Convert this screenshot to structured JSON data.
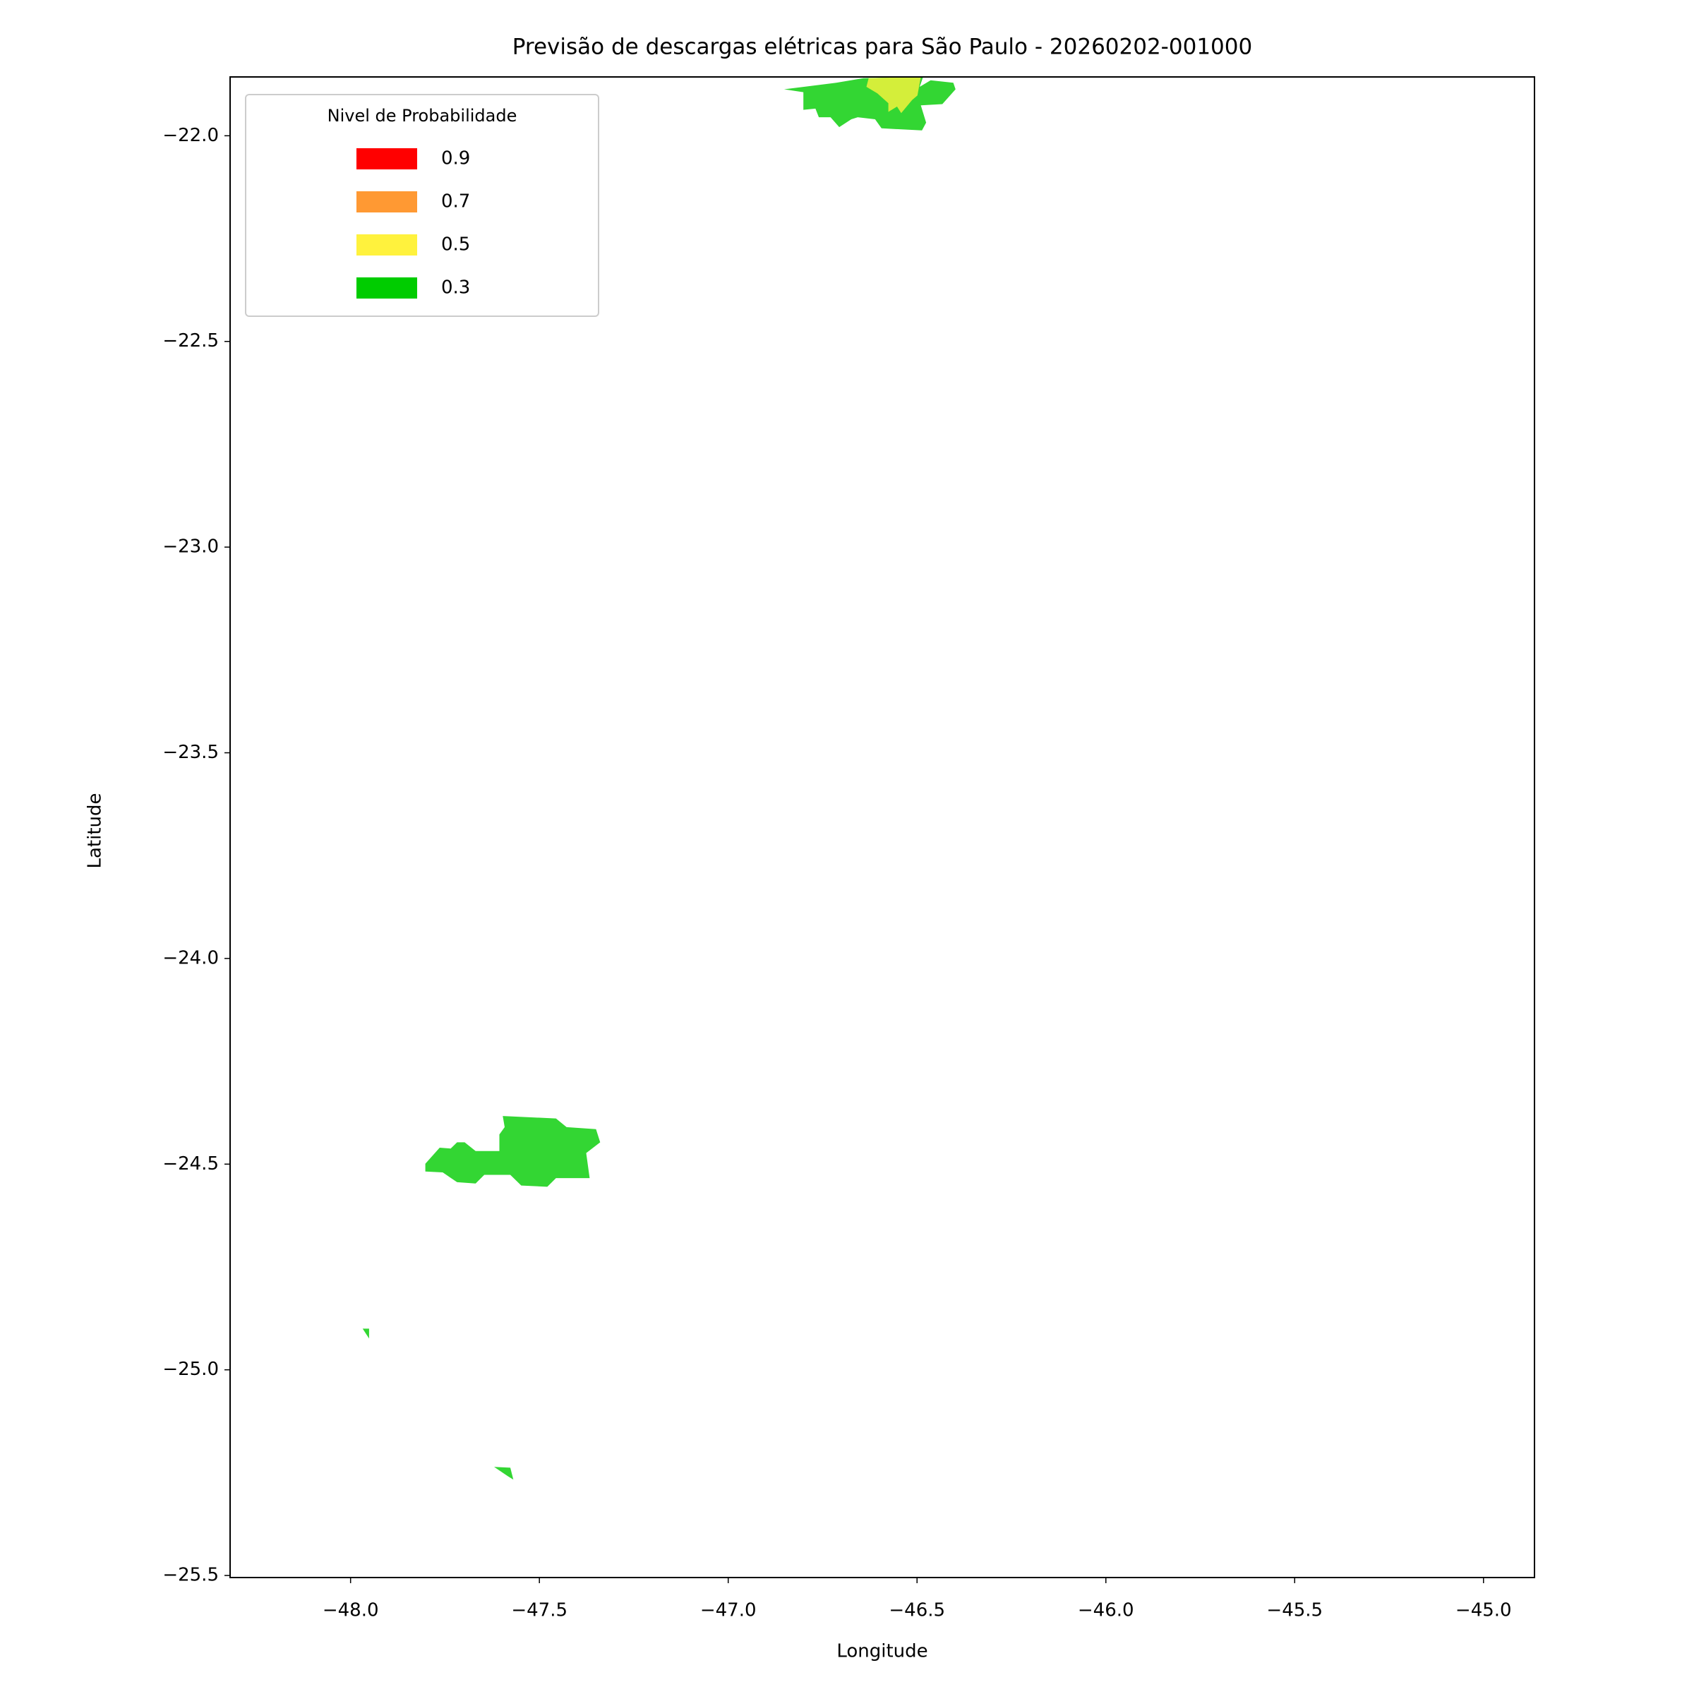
{
  "chart_data": {
    "type": "contour-map",
    "title": "Previsão de descargas elétricas para São Paulo - 20260202-001000",
    "xlabel": "Longitude",
    "ylabel": "Latitude",
    "xlim": [
      -48.319,
      -44.865
    ],
    "ylim": [
      -25.505,
      -21.857
    ],
    "xticks": [
      {
        "value": -48,
        "label": "−48.0"
      },
      {
        "value": -47.5,
        "label": "−47.5"
      },
      {
        "value": -47,
        "label": "−47.0"
      },
      {
        "value": -46.5,
        "label": "−46.5"
      },
      {
        "value": -46,
        "label": "−46.0"
      },
      {
        "value": -45.5,
        "label": "−45.5"
      },
      {
        "value": -45,
        "label": "−45.0"
      }
    ],
    "yticks": [
      {
        "value": -22,
        "label": "−22.0"
      },
      {
        "value": -22.5,
        "label": "−22.5"
      },
      {
        "value": -23,
        "label": "−23.0"
      },
      {
        "value": -23.5,
        "label": "−23.5"
      },
      {
        "value": -24,
        "label": "−24.0"
      },
      {
        "value": -24.5,
        "label": "−24.5"
      },
      {
        "value": -25,
        "label": "−25.0"
      },
      {
        "value": -25.5,
        "label": "−25.5"
      }
    ],
    "legend": {
      "title": "Nivel de Probabilidade",
      "position": "upper left",
      "entries": [
        {
          "label": "0.9",
          "color": "#ff0000"
        },
        {
          "label": "0.7",
          "color": "#ff9933"
        },
        {
          "label": "0.5",
          "color": "#fff23d"
        },
        {
          "label": "0.3",
          "color": "#00cc00"
        }
      ]
    },
    "regions": [
      {
        "color": "#33d633",
        "x": [
          -46.852,
          -46.714,
          -46.642,
          -46.484,
          -46.493,
          -46.464,
          -46.404,
          -46.398,
          -46.433,
          -46.49,
          -46.476,
          -46.487,
          -46.594,
          -46.611,
          -46.657,
          -46.674,
          -46.706,
          -46.729,
          -46.76,
          -46.769,
          -46.801,
          -46.801
        ],
        "y": [
          -21.887,
          -21.871,
          -21.86,
          -21.857,
          -21.881,
          -21.865,
          -21.871,
          -21.887,
          -21.923,
          -21.926,
          -21.968,
          -21.987,
          -21.982,
          -21.96,
          -21.955,
          -21.96,
          -21.979,
          -21.955,
          -21.955,
          -21.934,
          -21.937,
          -21.894
        ]
      },
      {
        "color": "#d4ee3a",
        "x": [
          -46.628,
          -46.49,
          -46.499,
          -46.513,
          -46.542,
          -46.553,
          -46.576,
          -46.576,
          -46.605,
          -46.634
        ],
        "y": [
          -21.86,
          -21.857,
          -21.902,
          -21.913,
          -21.945,
          -21.929,
          -21.942,
          -21.921,
          -21.897,
          -21.881
        ]
      },
      {
        "color": "#33d633",
        "x": [
          -47.597,
          -47.456,
          -47.428,
          -47.35,
          -47.339,
          -47.376,
          -47.367,
          -47.456,
          -47.479,
          -47.548,
          -47.577,
          -47.646,
          -47.669,
          -47.718,
          -47.756,
          -47.802,
          -47.802,
          -47.764,
          -47.735,
          -47.718,
          -47.698,
          -47.669,
          -47.606,
          -47.606,
          -47.592
        ],
        "y": [
          -24.383,
          -24.389,
          -24.41,
          -24.415,
          -24.447,
          -24.473,
          -24.534,
          -24.534,
          -24.555,
          -24.552,
          -24.526,
          -24.526,
          -24.547,
          -24.544,
          -24.52,
          -24.518,
          -24.499,
          -24.46,
          -24.462,
          -24.447,
          -24.447,
          -24.468,
          -24.468,
          -24.428,
          -24.41
        ]
      },
      {
        "color": "#33d633",
        "x": [
          -47.968,
          -47.951,
          -47.951
        ],
        "y": [
          -24.9,
          -24.9,
          -24.924
        ]
      },
      {
        "color": "#33d633",
        "x": [
          -47.62,
          -47.577,
          -47.569,
          -47.583
        ],
        "y": [
          -25.236,
          -25.238,
          -25.267,
          -25.259
        ]
      }
    ]
  }
}
